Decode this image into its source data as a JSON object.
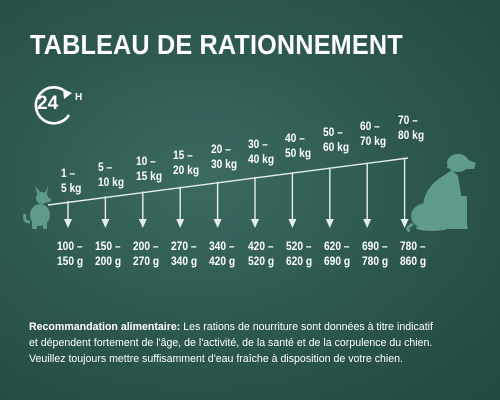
{
  "title": "TABLEAU DE RATIONNEMENT",
  "badge": {
    "number": "24",
    "unit": "H"
  },
  "weights": [
    {
      "from": "1 –",
      "to": "5 kg"
    },
    {
      "from": "5 –",
      "to": "10 kg"
    },
    {
      "from": "10 –",
      "to": "15 kg"
    },
    {
      "from": "15 –",
      "to": "20 kg"
    },
    {
      "from": "20 –",
      "to": "30 kg"
    },
    {
      "from": "30 –",
      "to": "40 kg"
    },
    {
      "from": "40 –",
      "to": "50 kg"
    },
    {
      "from": "50 –",
      "to": "60 kg"
    },
    {
      "from": "60 –",
      "to": "70 kg"
    },
    {
      "from": "70 –",
      "to": "80 kg"
    }
  ],
  "rations": [
    {
      "from": "100 –",
      "to": "150 g"
    },
    {
      "from": "150 –",
      "to": "200 g"
    },
    {
      "from": "200 –",
      "to": "270 g"
    },
    {
      "from": "270 –",
      "to": "340 g"
    },
    {
      "from": "340 –",
      "to": "420 g"
    },
    {
      "from": "420 –",
      "to": "520 g"
    },
    {
      "from": "520 –",
      "to": "620 g"
    },
    {
      "from": "620 –",
      "to": "690 g"
    },
    {
      "from": "690 –",
      "to": "780 g"
    },
    {
      "from": "780 –",
      "to": "860 g"
    }
  ],
  "footnote": {
    "label": "Recommandation alimentaire:",
    "line1": "Les rations de nourriture sont données à titre indicatif",
    "line2": "et dépendent fortement de l'âge, de l'activité, de la santé et de la corpulence du chien.",
    "line3": "Veuillez toujours mettre suffisamment d'eau fraîche à disposition de votre chien."
  },
  "colors": {
    "background": "#2b554d",
    "text": "#ffffff",
    "dog_silhouette": "#5f9b8a",
    "arrow": "#e6eeeb"
  },
  "icons": {
    "badge": "clock-24h-icon",
    "small_dog": "small-dog-icon",
    "large_dog": "large-dog-icon"
  }
}
